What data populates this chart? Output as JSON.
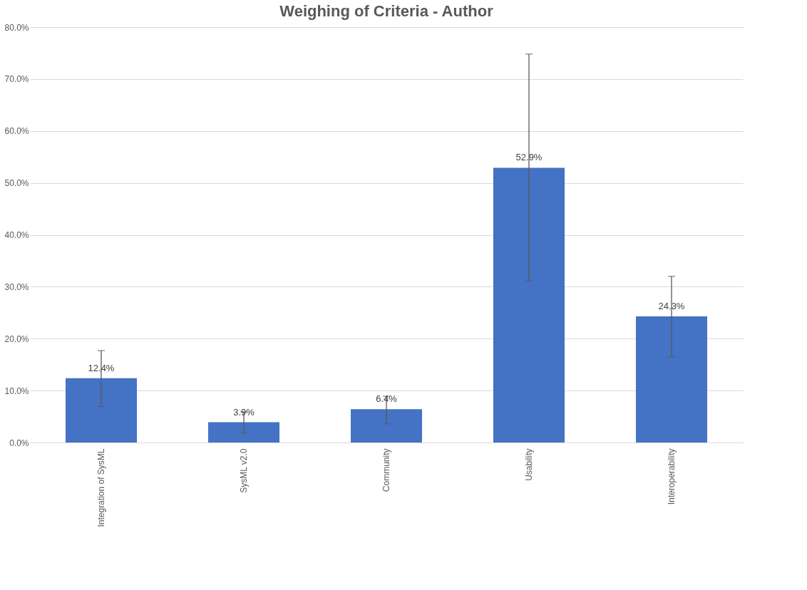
{
  "chart_data": {
    "type": "bar",
    "title": "Weighing of Criteria - Author",
    "categories": [
      "Integration of SysML",
      "SysML v2.0",
      "Community",
      "Usability",
      "Interoperability"
    ],
    "values": [
      12.4,
      3.9,
      6.4,
      52.9,
      24.3
    ],
    "value_labels": [
      "12.4%",
      "3.9%",
      "6.4%",
      "52.9%",
      "24.3%"
    ],
    "errors": [
      [
        6.9,
        17.7
      ],
      [
        1.8,
        5.9
      ],
      [
        3.6,
        8.9
      ],
      [
        31.1,
        74.8
      ],
      [
        16.5,
        32.0
      ]
    ],
    "color": "#4472c4",
    "ylim": [
      0,
      80
    ],
    "yticks": [
      {
        "value": 0,
        "label": "0.0%"
      },
      {
        "value": 10,
        "label": "10.0%"
      },
      {
        "value": 20,
        "label": "20.0%"
      },
      {
        "value": 30,
        "label": "30.0%"
      },
      {
        "value": 40,
        "label": "40.0%"
      },
      {
        "value": 50,
        "label": "50.0%"
      },
      {
        "value": 60,
        "label": "60.0%"
      },
      {
        "value": 70,
        "label": "70.0%"
      },
      {
        "value": 80,
        "label": "80.0%"
      }
    ],
    "grid": "y"
  }
}
